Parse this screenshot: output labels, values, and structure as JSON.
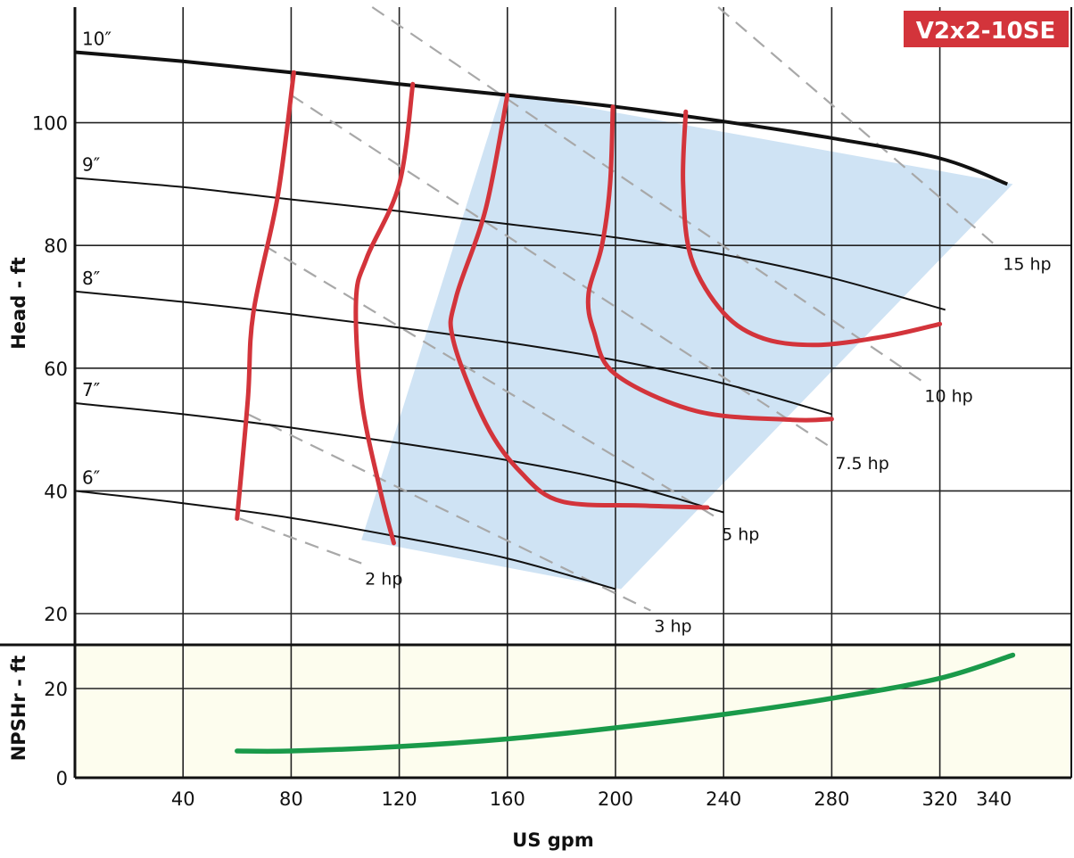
{
  "chart_data": {
    "type": "line",
    "title": "V2x2-10SE",
    "xlabel": "US gpm",
    "x_ticks": [
      40,
      80,
      120,
      160,
      200,
      240,
      280,
      320,
      340
    ],
    "xlim": [
      0,
      348
    ],
    "head_panel": {
      "ylabel": "Head - ft",
      "ylim": [
        15,
        120
      ],
      "y_ticks": [
        20,
        40,
        60,
        80,
        100
      ],
      "impeller_curves": [
        {
          "label": "10″",
          "x": [
            0,
            40,
            80,
            120,
            160,
            200,
            240,
            280,
            320,
            345
          ],
          "y": [
            111.5,
            110,
            108.2,
            106.3,
            104.5,
            102.6,
            100.2,
            97.5,
            94.2,
            90
          ]
        },
        {
          "label": "9″",
          "x": [
            0,
            40,
            80,
            120,
            160,
            200,
            240,
            280,
            322
          ],
          "y": [
            91,
            89.5,
            87.5,
            85.6,
            83.5,
            81.3,
            78.5,
            74.7,
            69.5
          ]
        },
        {
          "label": "8″",
          "x": [
            0,
            40,
            80,
            120,
            160,
            200,
            240,
            280
          ],
          "y": [
            72.5,
            70.8,
            68.8,
            66.6,
            64.2,
            61.3,
            57.5,
            52.5
          ]
        },
        {
          "label": "7″",
          "x": [
            0,
            40,
            80,
            120,
            160,
            200,
            240
          ],
          "y": [
            54.3,
            52.5,
            50.3,
            47.8,
            45,
            41.5,
            36.5
          ]
        },
        {
          "label": "6″",
          "x": [
            0,
            40,
            80,
            120,
            160,
            200
          ],
          "y": [
            40,
            38,
            35.6,
            32.5,
            29,
            24
          ]
        }
      ],
      "efficiency_curves": [
        {
          "x": [
            60,
            64,
            66,
            75,
            81
          ],
          "y": [
            35.5,
            55,
            69,
            88,
            108.2
          ]
        },
        {
          "x": [
            118,
            113,
            106,
            104,
            108,
            120,
            125
          ],
          "y": [
            31.5,
            40,
            55,
            71,
            78,
            90,
            106.3
          ]
        },
        {
          "x": [
            234,
            210,
            180,
            165,
            152,
            140,
            141,
            152,
            160
          ],
          "y": [
            37.3,
            37.6,
            38.3,
            43,
            51,
            64.5,
            71.5,
            86,
            104.5
          ]
        },
        {
          "x": [
            280,
            265,
            230,
            200,
            192,
            190,
            195,
            198,
            199
          ],
          "y": [
            51.7,
            51.6,
            53,
            59,
            66,
            72,
            80,
            90,
            102.6
          ]
        },
        {
          "x": [
            320,
            300,
            275,
            255,
            240,
            228,
            225,
            226
          ],
          "y": [
            67.2,
            65.2,
            63.8,
            64.8,
            69,
            78,
            90,
            101.8
          ]
        }
      ],
      "power_lines": [
        {
          "label": "2 hp",
          "x": [
            61,
            106
          ],
          "y": [
            35.5,
            28.2
          ]
        },
        {
          "label": "3 hp",
          "x": [
            64,
            213
          ],
          "y": [
            52.5,
            20.5
          ]
        },
        {
          "label": "5 hp",
          "x": [
            70,
            238
          ],
          "y": [
            80,
            35.5
          ]
        },
        {
          "label": "7.5 hp",
          "x": [
            80,
            280
          ],
          "y": [
            104.5,
            47
          ]
        },
        {
          "label": "10 hp",
          "x": [
            110,
            313
          ],
          "y": [
            122,
            58
          ]
        },
        {
          "label": "15 hp",
          "x": [
            238,
            342
          ],
          "y": [
            122,
            79.5
          ]
        }
      ],
      "preferred_region": {
        "x": [
          106,
          158,
          347,
          202
        ],
        "y": [
          32,
          105,
          90,
          24
        ]
      }
    },
    "npsh_panel": {
      "ylabel": "NPSHr - ft",
      "ylim": [
        0,
        32
      ],
      "y_ticks": [
        0,
        20
      ],
      "series": [
        {
          "x": [
            60,
            80,
            120,
            160,
            200,
            240,
            280,
            320,
            347
          ],
          "y": [
            6,
            6,
            7,
            8.7,
            11.2,
            14.2,
            17.8,
            22.3,
            27.5
          ]
        }
      ]
    },
    "grid": true
  },
  "colors": {
    "efficiency": "#d3343b",
    "npsh": "#1a9a4a",
    "region": "#cfe3f4",
    "npsh_bg": "#fdfdee",
    "badge": "#d3343b",
    "power": "#a8a8a8",
    "grid": "#222222"
  }
}
